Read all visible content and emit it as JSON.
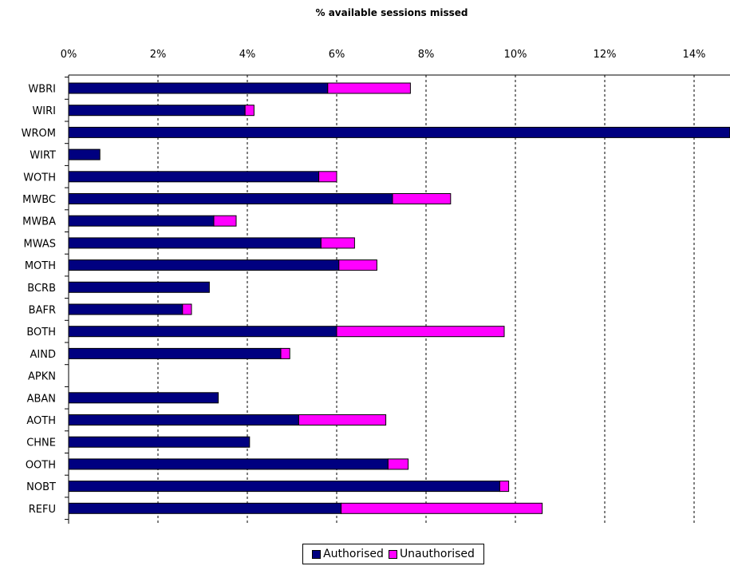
{
  "chart_data": {
    "type": "bar",
    "orientation": "horizontal",
    "stacked": true,
    "title": "% available sessions missed",
    "xlabel": "",
    "ylabel": "",
    "xlim": [
      0,
      14.8
    ],
    "ticks": [
      "0%",
      "2%",
      "4%",
      "6%",
      "8%",
      "10%",
      "12%",
      "14%"
    ],
    "tick_values": [
      0,
      2,
      4,
      6,
      8,
      10,
      12,
      14
    ],
    "categories": [
      "WBRI",
      "WIRI",
      "WROM",
      "WIRT",
      "WOTH",
      "MWBC",
      "MWBA",
      "MWAS",
      "MOTH",
      "BCRB",
      "BAFR",
      "BOTH",
      "AIND",
      "APKN",
      "ABAN",
      "AOTH",
      "CHNE",
      "OOTH",
      "NOBT",
      "REFU"
    ],
    "series": [
      {
        "name": "Authorised",
        "color": "#000080",
        "values": [
          5.8,
          3.95,
          14.8,
          0.7,
          5.6,
          7.25,
          3.25,
          5.65,
          6.05,
          3.15,
          2.55,
          6.0,
          4.75,
          0,
          3.35,
          5.15,
          4.05,
          7.15,
          9.65,
          6.1
        ]
      },
      {
        "name": "Unauthorised",
        "color": "#ff00ff",
        "values": [
          1.85,
          0.2,
          0,
          0,
          0.4,
          1.3,
          0.5,
          0.75,
          0.85,
          0,
          0.2,
          3.75,
          0.2,
          0,
          0,
          1.95,
          0,
          0.45,
          0.2,
          4.5
        ]
      }
    ],
    "grid": true,
    "legend_position": "bottom"
  },
  "legend": {
    "authorised_label": "Authorised",
    "unauthorised_label": "Unauthorised"
  }
}
